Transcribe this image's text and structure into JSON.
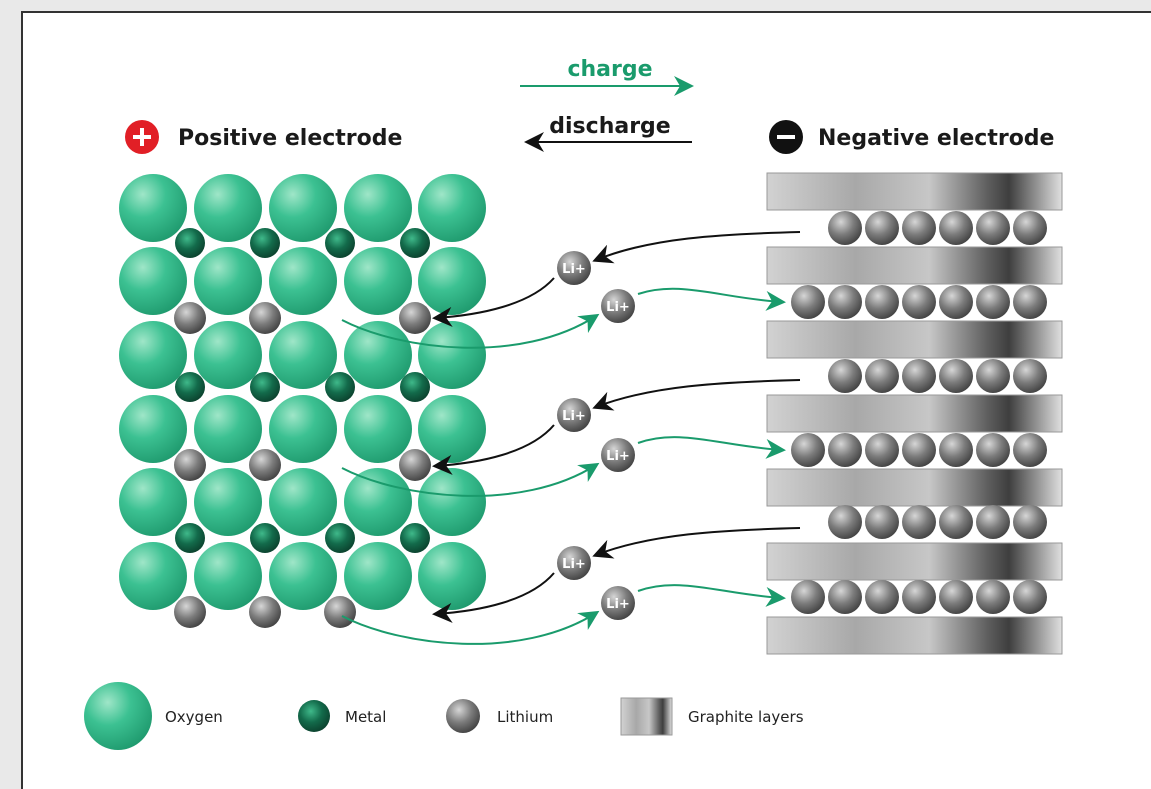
{
  "arrows": {
    "charge": "charge",
    "discharge": "discharge"
  },
  "electrodes": {
    "positive": "Positive electrode",
    "negative": "Negative electrode"
  },
  "ions": [
    "Li+",
    "Li+",
    "Li+",
    "Li+",
    "Li+",
    "Li+"
  ],
  "legend": [
    "Oxygen",
    "Metal",
    "Lithium",
    "Graphite layers"
  ]
}
